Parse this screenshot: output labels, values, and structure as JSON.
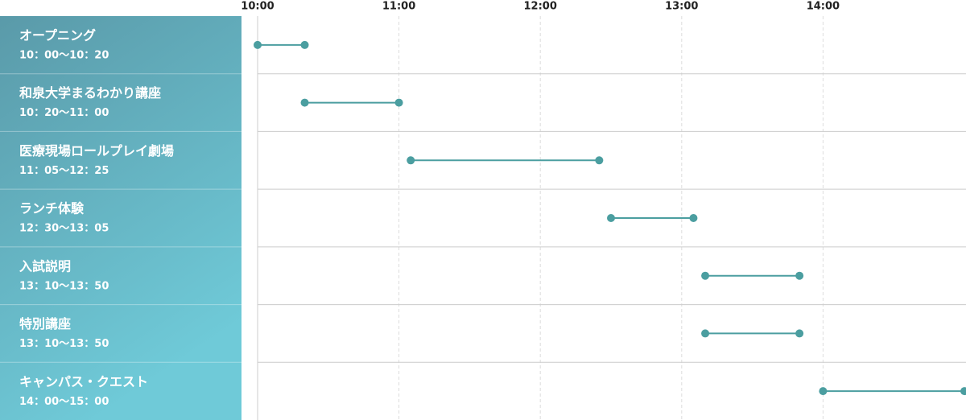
{
  "chart_data": {
    "type": "dumbbell",
    "color": "#4b9ea0",
    "xlim": [
      600,
      900
    ],
    "xticks": [
      {
        "value": 600,
        "label": "10:00"
      },
      {
        "value": 660,
        "label": "11:00"
      },
      {
        "value": 720,
        "label": "12:00"
      },
      {
        "value": 780,
        "label": "13:00"
      },
      {
        "value": 840,
        "label": "14:00"
      }
    ],
    "grid": true,
    "tasks": [
      {
        "name": "オープニング",
        "label": "10：00〜10：20",
        "start": 600,
        "end": 620
      },
      {
        "name": "和泉大学まるわかり講座",
        "label": "10：20〜11：00",
        "start": 620,
        "end": 660
      },
      {
        "name": "医療現場ロールプレイ劇場",
        "label": "11：05〜12：25",
        "start": 665,
        "end": 745
      },
      {
        "name": "ランチ体験",
        "label": "12：30〜13：05",
        "start": 750,
        "end": 785
      },
      {
        "name": "入試説明",
        "label": "13：10〜13：50",
        "start": 790,
        "end": 830
      },
      {
        "name": "特別講座",
        "label": "13：10〜13：50",
        "start": 790,
        "end": 830
      },
      {
        "name": "キャンパス・クエスト",
        "label": "14：00〜15：00",
        "start": 840,
        "end": 900
      }
    ]
  }
}
